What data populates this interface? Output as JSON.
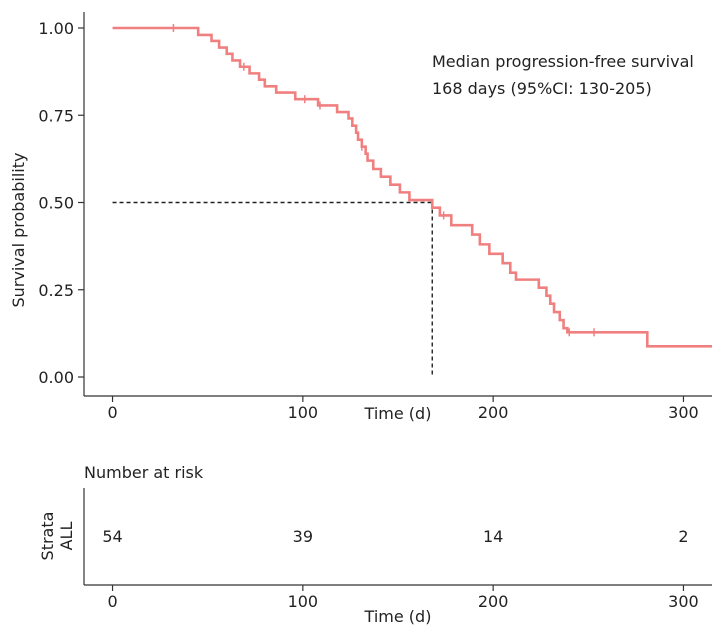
{
  "chart_data": [
    {
      "type": "line",
      "subtype": "kaplan-meier",
      "title": "",
      "xlabel": "Time (d)",
      "ylabel": "Survival probability",
      "xlim": [
        -15,
        315
      ],
      "ylim": [
        0,
        1
      ],
      "xticks": [
        0,
        100,
        200,
        300
      ],
      "xtick_labels": [
        "0",
        "100",
        "200",
        "300"
      ],
      "yticks": [
        0,
        0.25,
        0.5,
        0.75,
        1
      ],
      "ytick_labels": [
        "0.00",
        "0.25",
        "0.50",
        "0.75",
        "1.00"
      ],
      "grid": false,
      "series_color": "#F08080",
      "reference_color": "#222222",
      "annotation_lines": [
        "Median progression-free survival",
        "168 days (95%CI: 130-205)"
      ],
      "median": {
        "time": 168,
        "survival": 0.5
      },
      "steps": [
        [
          0,
          1.0
        ],
        [
          45,
          0.98
        ],
        [
          52,
          0.963
        ],
        [
          56,
          0.944
        ],
        [
          60,
          0.926
        ],
        [
          63,
          0.907
        ],
        [
          67,
          0.889
        ],
        [
          72,
          0.87
        ],
        [
          77,
          0.852
        ],
        [
          80,
          0.833
        ],
        [
          86,
          0.815
        ],
        [
          96,
          0.796
        ],
        [
          108,
          0.778
        ],
        [
          118,
          0.759
        ],
        [
          124,
          0.741
        ],
        [
          126,
          0.72
        ],
        [
          128,
          0.7
        ],
        [
          129,
          0.68
        ],
        [
          131,
          0.66
        ],
        [
          133,
          0.64
        ],
        [
          134,
          0.62
        ],
        [
          137,
          0.596
        ],
        [
          141,
          0.574
        ],
        [
          146,
          0.551
        ],
        [
          151,
          0.529
        ],
        [
          156,
          0.507
        ],
        [
          168,
          0.485
        ],
        [
          172,
          0.463
        ],
        [
          178,
          0.435
        ],
        [
          189,
          0.408
        ],
        [
          193,
          0.38
        ],
        [
          198,
          0.353
        ],
        [
          205,
          0.326
        ],
        [
          209,
          0.299
        ],
        [
          212,
          0.279
        ],
        [
          224,
          0.256
        ],
        [
          228,
          0.233
        ],
        [
          230,
          0.21
        ],
        [
          232,
          0.186
        ],
        [
          235,
          0.163
        ],
        [
          237,
          0.14
        ],
        [
          239,
          0.128
        ],
        [
          281,
          0.088
        ],
        [
          315,
          0.088
        ]
      ],
      "censored_times": [
        32,
        69,
        101,
        109,
        131,
        174,
        240,
        253
      ]
    },
    {
      "type": "table",
      "title": "Number at risk",
      "xlabel": "Time (d)",
      "ylabel": "Strata",
      "xlim": [
        -15,
        315
      ],
      "xticks": [
        0,
        100,
        200,
        300
      ],
      "xtick_labels": [
        "0",
        "100",
        "200",
        "300"
      ],
      "strata_label": "ALL",
      "at_risk": [
        {
          "time": 0,
          "count": "54"
        },
        {
          "time": 100,
          "count": "39"
        },
        {
          "time": 200,
          "count": "14"
        },
        {
          "time": 300,
          "count": "2"
        }
      ]
    }
  ]
}
